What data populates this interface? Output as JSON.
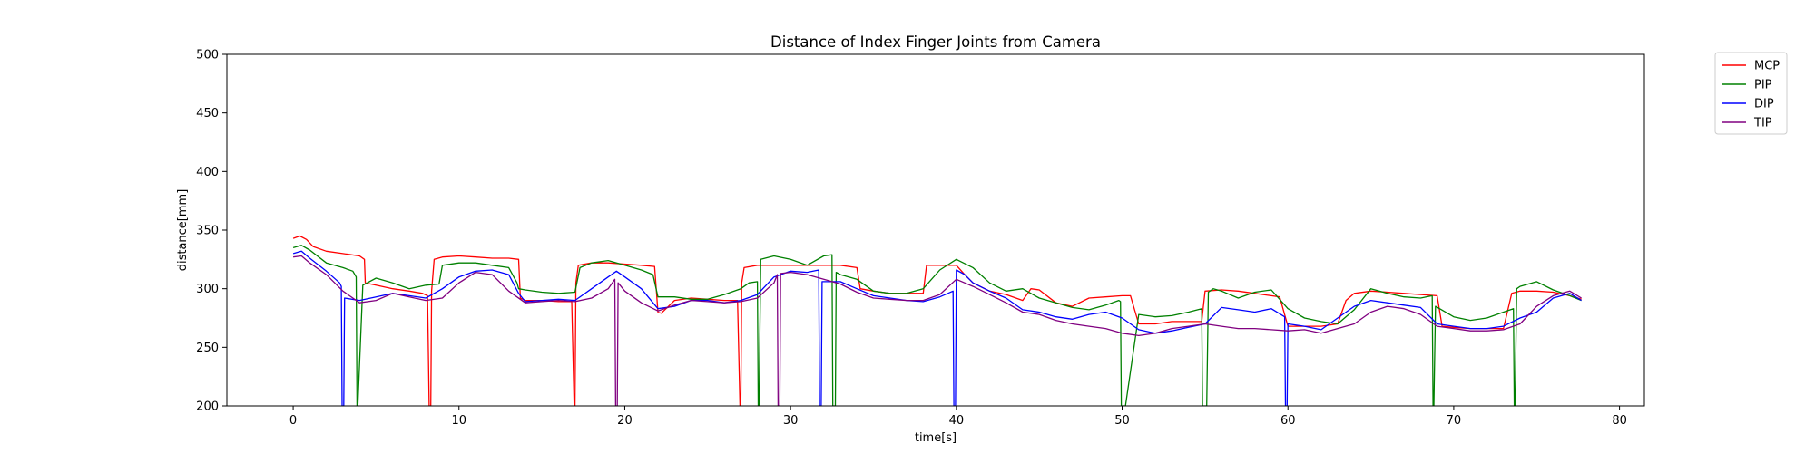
{
  "chart_data": {
    "type": "line",
    "title": "Distance of Index Finger Joints from Camera",
    "xlabel": "time[s]",
    "ylabel": "distance[mm]",
    "xlim": [
      -4,
      81.5
    ],
    "ylim": [
      200,
      500
    ],
    "xticks": [
      0,
      10,
      20,
      30,
      40,
      50,
      60,
      70,
      80
    ],
    "yticks": [
      200,
      250,
      300,
      350,
      400,
      450,
      500
    ],
    "grid": false,
    "legend_position": "outside-top-right",
    "series": [
      {
        "name": "MCP",
        "color": "#ff0000",
        "x": [
          0,
          0.4,
          0.8,
          1.2,
          2,
          3,
          4,
          4.3,
          4.35,
          5,
          6,
          7,
          7.8,
          8.1,
          8.2,
          8.3,
          8.35,
          8.5,
          9,
          10,
          11,
          12,
          13,
          13.6,
          13.7,
          14,
          15,
          16,
          16.8,
          16.95,
          17,
          17.05,
          17.2,
          18,
          19,
          20,
          21,
          21.8,
          22,
          22.2,
          23,
          24,
          25,
          26,
          26.8,
          26.95,
          27,
          27.05,
          27.2,
          28,
          29,
          30,
          31,
          32,
          33,
          34,
          34.2,
          35,
          36,
          37,
          38,
          38.2,
          39,
          40,
          40.5,
          41,
          42,
          43,
          44,
          44.5,
          45,
          46,
          47,
          48,
          49,
          50,
          50.5,
          51,
          52,
          53,
          54,
          54.8,
          55,
          56,
          57,
          58,
          59,
          59.5,
          60,
          61,
          62,
          63,
          63.5,
          64,
          65,
          66,
          67,
          68,
          69,
          69.3,
          70,
          71,
          72,
          73,
          73.5,
          74,
          75,
          76,
          77,
          77.7
        ],
        "y": [
          343,
          345,
          342,
          336,
          332,
          330,
          328,
          325,
          305,
          303,
          300,
          298,
          296,
          294,
          200,
          200,
          298,
          325,
          327,
          328,
          327,
          326,
          326,
          325,
          292,
          290,
          290,
          289,
          289,
          200,
          200,
          305,
          320,
          322,
          322,
          321,
          320,
          319,
          280,
          279,
          290,
          292,
          291,
          290,
          290,
          200,
          200,
          305,
          318,
          320,
          320,
          320,
          320,
          320,
          320,
          318,
          300,
          298,
          296,
          296,
          296,
          320,
          320,
          320,
          312,
          305,
          298,
          295,
          290,
          300,
          299,
          288,
          285,
          292,
          293,
          294,
          294,
          270,
          270,
          272,
          272,
          272,
          298,
          299,
          298,
          296,
          294,
          293,
          268,
          268,
          268,
          270,
          290,
          296,
          298,
          297,
          296,
          295,
          294,
          268,
          267,
          266,
          266,
          266,
          296,
          298,
          298,
          297,
          294,
          291
        ]
      },
      {
        "name": "PIP",
        "color": "#008000",
        "x": [
          0,
          0.5,
          1,
          2,
          3,
          3.6,
          3.8,
          3.85,
          3.9,
          4.2,
          5,
          6,
          7,
          8,
          8.8,
          9,
          10,
          11,
          12,
          13,
          13.5,
          13.6,
          14,
          15,
          16,
          17,
          17.3,
          18,
          19,
          20,
          21,
          21.7,
          22,
          23,
          24,
          25,
          26,
          27,
          27.5,
          28,
          28.05,
          28.1,
          28.2,
          29,
          30,
          31,
          32,
          32.5,
          32.55,
          32.7,
          32.75,
          33,
          34,
          35,
          36,
          37,
          38,
          39,
          40,
          41,
          42,
          43,
          44,
          45,
          46,
          47,
          48,
          49,
          49.8,
          49.9,
          49.95,
          50.2,
          51,
          52,
          53,
          54,
          54.8,
          54.85,
          55.1,
          55.2,
          55.5,
          56,
          57,
          58,
          59,
          60,
          61,
          62,
          63,
          64,
          65,
          66,
          67,
          68,
          68.7,
          68.75,
          68.8,
          68.9,
          70,
          71,
          72,
          73,
          73.6,
          73.65,
          73.7,
          73.8,
          74,
          75,
          76,
          77,
          77.7
        ],
        "y": [
          335,
          337,
          333,
          322,
          318,
          315,
          310,
          200,
          200,
          303,
          309,
          305,
          300,
          303,
          304,
          320,
          322,
          322,
          320,
          318,
          305,
          300,
          299,
          297,
          296,
          297,
          318,
          322,
          324,
          320,
          316,
          312,
          293,
          293,
          291,
          291,
          295,
          300,
          305,
          306,
          200,
          200,
          325,
          328,
          325,
          320,
          328,
          329,
          200,
          200,
          314,
          312,
          308,
          298,
          296,
          296,
          300,
          316,
          325,
          318,
          305,
          298,
          300,
          292,
          288,
          284,
          282,
          286,
          290,
          289,
          200,
          200,
          278,
          276,
          277,
          280,
          283,
          200,
          200,
          297,
          300,
          298,
          292,
          297,
          299,
          283,
          275,
          272,
          270,
          282,
          300,
          296,
          293,
          292,
          294,
          200,
          200,
          285,
          276,
          273,
          275,
          280,
          283,
          200,
          200,
          300,
          302,
          306,
          299,
          294,
          290
        ]
      },
      {
        "name": "DIP",
        "color": "#0000ff",
        "x": [
          0,
          0.5,
          1,
          2,
          2.8,
          2.9,
          2.95,
          3.05,
          3.1,
          4,
          5,
          6,
          7,
          8,
          9,
          10,
          11,
          12,
          13,
          13.6,
          14,
          15,
          16,
          17,
          18,
          19,
          19.5,
          20,
          21,
          22,
          23,
          24,
          25,
          26,
          27,
          28,
          29,
          30,
          31,
          31.7,
          31.75,
          31.85,
          31.9,
          33,
          34,
          35,
          36,
          37,
          38,
          39,
          39.8,
          39.85,
          39.95,
          40,
          40.5,
          41,
          42,
          43,
          44,
          45,
          46,
          47,
          48,
          49,
          50,
          51,
          52,
          53,
          54,
          55,
          56,
          57,
          58,
          59,
          59.8,
          59.85,
          59.95,
          60,
          61,
          62,
          63,
          64,
          65,
          66,
          67,
          68,
          69,
          70,
          71,
          72,
          73,
          74,
          75,
          76,
          77,
          77.7
        ],
        "y": [
          330,
          332,
          326,
          315,
          305,
          302,
          200,
          200,
          292,
          290,
          293,
          296,
          294,
          292,
          300,
          310,
          315,
          316,
          312,
          296,
          289,
          290,
          291,
          290,
          300,
          310,
          315,
          310,
          300,
          283,
          285,
          290,
          290,
          288,
          290,
          295,
          310,
          315,
          314,
          316,
          200,
          200,
          306,
          306,
          300,
          294,
          292,
          290,
          289,
          293,
          298,
          200,
          200,
          316,
          312,
          305,
          298,
          292,
          282,
          280,
          276,
          274,
          278,
          280,
          275,
          265,
          262,
          264,
          267,
          270,
          284,
          282,
          280,
          283,
          276,
          200,
          200,
          270,
          268,
          265,
          275,
          285,
          290,
          288,
          286,
          284,
          270,
          268,
          266,
          266,
          268,
          275,
          280,
          292,
          296,
          290
        ]
      },
      {
        "name": "TIP",
        "color": "#800080",
        "x": [
          0,
          0.5,
          1,
          2,
          3,
          4,
          5,
          6,
          7,
          8,
          9,
          10,
          11,
          12,
          13,
          14,
          15,
          16,
          17,
          18,
          19,
          19.4,
          19.45,
          19.55,
          19.6,
          20,
          21,
          22,
          23,
          24,
          25,
          26,
          27,
          28,
          29,
          29.2,
          29.25,
          29.35,
          29.4,
          30,
          31,
          32,
          33,
          34,
          35,
          36,
          37,
          38,
          39,
          40,
          41,
          42,
          43,
          44,
          45,
          46,
          47,
          48,
          49,
          50,
          51,
          52,
          53,
          54,
          55,
          56,
          57,
          58,
          59,
          60,
          61,
          62,
          63,
          64,
          65,
          66,
          67,
          68,
          69,
          70,
          71,
          72,
          73,
          74,
          75,
          76,
          77,
          77.7
        ],
        "y": [
          327,
          328,
          322,
          312,
          298,
          288,
          290,
          296,
          293,
          290,
          292,
          305,
          314,
          312,
          298,
          288,
          289,
          290,
          289,
          292,
          300,
          308,
          200,
          200,
          305,
          298,
          288,
          281,
          286,
          290,
          289,
          288,
          289,
          292,
          305,
          312,
          200,
          200,
          313,
          314,
          312,
          308,
          304,
          297,
          292,
          291,
          290,
          290,
          295,
          308,
          302,
          295,
          288,
          280,
          278,
          273,
          270,
          268,
          266,
          262,
          260,
          262,
          266,
          268,
          270,
          268,
          266,
          266,
          265,
          264,
          265,
          262,
          266,
          270,
          280,
          285,
          283,
          278,
          268,
          266,
          264,
          264,
          265,
          270,
          285,
          294,
          298,
          292
        ]
      }
    ]
  }
}
